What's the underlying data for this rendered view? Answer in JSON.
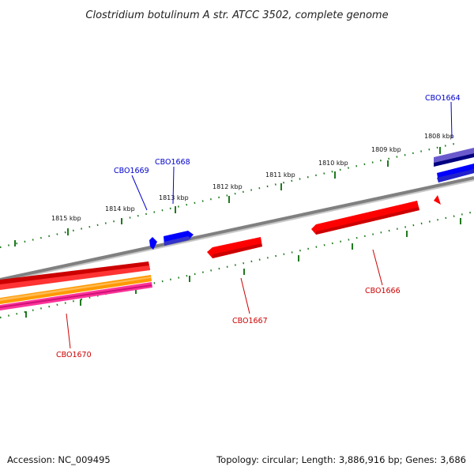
{
  "map": {
    "title": "Clostridium botulinum A str. ATCC 3502, complete genome",
    "accession": "Accession: NC_009495",
    "topology": "Topology: circular; Length: 3,886,916 bp; Genes: 3,686"
  },
  "ticks": [
    {
      "label": "1815 kbp"
    },
    {
      "label": "1814 kbp"
    },
    {
      "label": "1813 kbp"
    },
    {
      "label": "1812 kbp"
    },
    {
      "label": "1811 kbp"
    },
    {
      "label": "1810 kbp"
    },
    {
      "label": "1809 kbp"
    },
    {
      "label": "1808 kbp"
    }
  ],
  "genes": [
    {
      "id": "CBO1664",
      "strand": "forward",
      "color": "#0000cc"
    },
    {
      "id": "CBO1668",
      "strand": "forward",
      "color": "#0000cc"
    },
    {
      "id": "CBO1669",
      "strand": "forward",
      "color": "#0000cc"
    },
    {
      "id": "CBO1666",
      "strand": "reverse",
      "color": "#cc0000"
    },
    {
      "id": "CBO1667",
      "strand": "reverse",
      "color": "#cc0000"
    },
    {
      "id": "CBO1670",
      "strand": "reverse",
      "color": "#cc0000"
    }
  ],
  "colors": {
    "backbone": "#808080",
    "forward_gene": "#0000ff",
    "reverse_gene": "#ff0000",
    "tick": "#1f7a1f",
    "orange_band": "#ff9900",
    "pink_band": "#ff3399",
    "purple_band": "#6a5acd",
    "navy_band": "#000080"
  }
}
